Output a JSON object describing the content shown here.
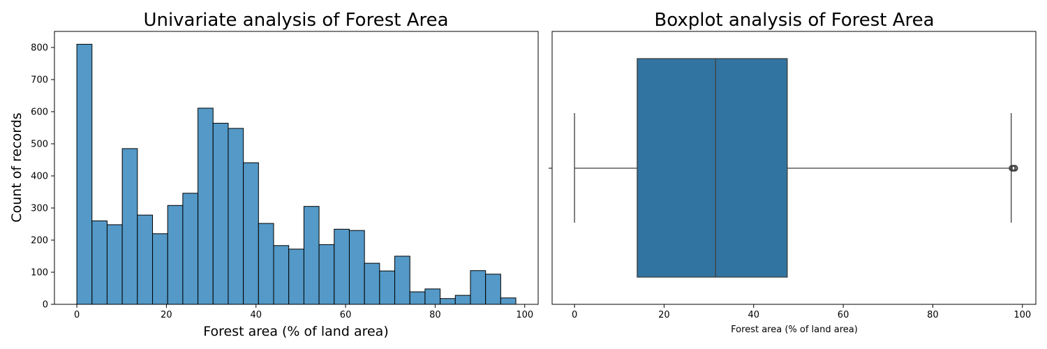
{
  "chart_data": [
    {
      "type": "histogram",
      "title": "Univariate analysis of Forest Area",
      "xlabel": "Forest area (% of land area)",
      "ylabel": "Count of records",
      "xlim": [
        -5,
        103
      ],
      "ylim": [
        0,
        850
      ],
      "xticks": [
        "0",
        "20",
        "40",
        "60",
        "80",
        "100"
      ],
      "yticks": [
        "0",
        "100",
        "200",
        "300",
        "400",
        "500",
        "600",
        "700",
        "800"
      ],
      "bin_start": 0,
      "bin_width": 3.38,
      "values": [
        810,
        260,
        248,
        485,
        278,
        220,
        308,
        346,
        611,
        564,
        548,
        441,
        252,
        183,
        172,
        305,
        186,
        234,
        230,
        128,
        104,
        150,
        39,
        48,
        18,
        28,
        105,
        94,
        20
      ],
      "bar_color": "#5499c7",
      "edge_color": "#000000",
      "grid": false
    },
    {
      "type": "boxplot",
      "title": "Boxplot analysis of Forest Area",
      "xlabel": "Forest area (% of land area)",
      "xlim": [
        -5,
        103
      ],
      "xticks": [
        "0",
        "20",
        "40",
        "60",
        "80",
        "100"
      ],
      "whisker_low": 0,
      "q1": 14,
      "median": 31.5,
      "q3": 47.5,
      "whisker_high": 97.5,
      "outliers": [
        97.7,
        98.0,
        98.3
      ],
      "box_color": "#3274a1",
      "line_color": "#3d3d3d",
      "grid": false
    }
  ]
}
